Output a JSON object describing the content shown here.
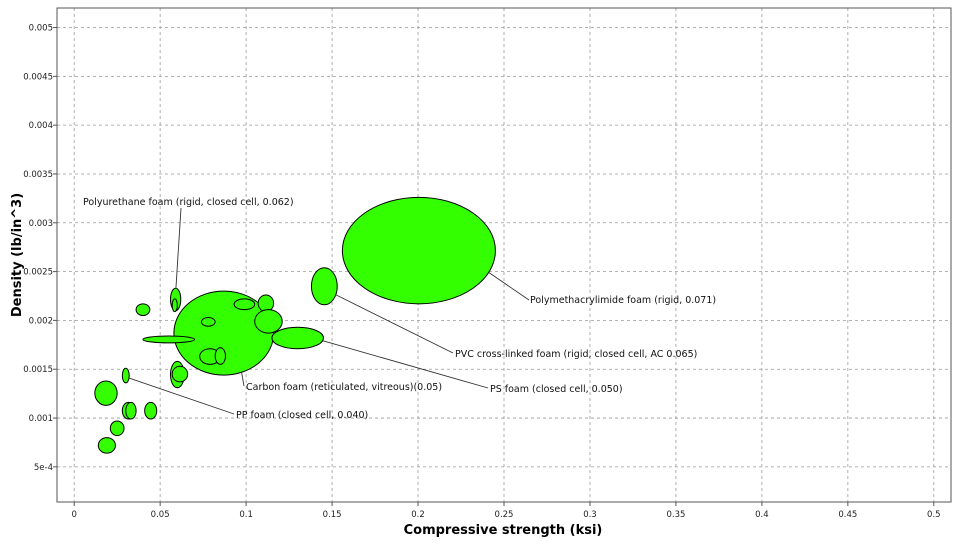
{
  "chart_data": {
    "type": "scatter",
    "title": "",
    "xlabel": "Compressive strength (ksi)",
    "ylabel": "Density (lb/in^3)",
    "xlim": [
      -0.01,
      0.51
    ],
    "ylim": [
      0.00014,
      0.0052
    ],
    "x_ticks": [
      0,
      0.05,
      0.1,
      0.15,
      0.2,
      0.25,
      0.3,
      0.35,
      0.4,
      0.45,
      0.5
    ],
    "x_tick_labels": [
      "0",
      "0.05",
      "0.1",
      "0.15",
      "0.2",
      "0.25",
      "0.3",
      "0.35",
      "0.4",
      "0.45",
      "0.5"
    ],
    "y_ticks": [
      0.0005,
      0.001,
      0.0015,
      0.002,
      0.0025,
      0.003,
      0.0035,
      0.004,
      0.0045,
      0.005
    ],
    "y_tick_labels": [
      "5e-4",
      "0.001",
      "0.0015",
      "0.002",
      "0.0025",
      "0.003",
      "0.0035",
      "0.004",
      "0.0045",
      "0.005"
    ],
    "grid": true,
    "fill_color": "#33ff00",
    "stroke_color": "#000000",
    "bubbles": [
      {
        "x_min": 0.156,
        "x_max": 0.245,
        "y_min": 0.00217,
        "y_max": 0.00326,
        "label": "Polymethacrylimide foam (rigid, 0.071)"
      },
      {
        "x_min": 0.138,
        "x_max": 0.153,
        "y_min": 0.00216,
        "y_max": 0.00254,
        "label": "PVC cross-linked foam (rigid, closed cell, AC 0.065)"
      },
      {
        "x_min": 0.058,
        "x_max": 0.116,
        "y_min": 0.00144,
        "y_max": 0.0023,
        "label": "Carbon foam (reticulated, vitreous)(0.05)"
      },
      {
        "x_min": 0.115,
        "x_max": 0.145,
        "y_min": 0.00171,
        "y_max": 0.00193,
        "label": "PS foam (closed cell, 0.050)"
      },
      {
        "x_min": 0.056,
        "x_max": 0.062,
        "y_min": 0.0021,
        "y_max": 0.00233,
        "label": "Polyurethane foam (rigid, closed cell, 0.062)"
      },
      {
        "x_min": 0.057,
        "x_max": 0.06,
        "y_min": 0.00209,
        "y_max": 0.00222,
        "label": ""
      },
      {
        "x_min": 0.028,
        "x_max": 0.032,
        "y_min": 0.00136,
        "y_max": 0.00151,
        "label": "PP foam (closed cell, 0.040)"
      },
      {
        "x_min": 0.04,
        "x_max": 0.07,
        "y_min": 0.00177,
        "y_max": 0.00184,
        "label": ""
      },
      {
        "x_min": 0.036,
        "x_max": 0.044,
        "y_min": 0.00205,
        "y_max": 0.00217,
        "label": ""
      },
      {
        "x_min": 0.074,
        "x_max": 0.082,
        "y_min": 0.00194,
        "y_max": 0.00203,
        "label": ""
      },
      {
        "x_min": 0.093,
        "x_max": 0.105,
        "y_min": 0.00211,
        "y_max": 0.00222,
        "label": ""
      },
      {
        "x_min": 0.107,
        "x_max": 0.116,
        "y_min": 0.00209,
        "y_max": 0.00226,
        "label": ""
      },
      {
        "x_min": 0.105,
        "x_max": 0.121,
        "y_min": 0.00187,
        "y_max": 0.00211,
        "label": ""
      },
      {
        "x_min": 0.073,
        "x_max": 0.085,
        "y_min": 0.00155,
        "y_max": 0.00171,
        "label": ""
      },
      {
        "x_min": 0.082,
        "x_max": 0.088,
        "y_min": 0.00155,
        "y_max": 0.00172,
        "label": ""
      },
      {
        "x_min": 0.056,
        "x_max": 0.064,
        "y_min": 0.00131,
        "y_max": 0.00158,
        "label": ""
      },
      {
        "x_min": 0.057,
        "x_max": 0.066,
        "y_min": 0.00137,
        "y_max": 0.00153,
        "label": ""
      },
      {
        "x_min": 0.012,
        "x_max": 0.025,
        "y_min": 0.00113,
        "y_max": 0.00138,
        "label": ""
      },
      {
        "x_min": 0.028,
        "x_max": 0.035,
        "y_min": 0.00099,
        "y_max": 0.00116,
        "label": ""
      },
      {
        "x_min": 0.03,
        "x_max": 0.036,
        "y_min": 0.00099,
        "y_max": 0.00116,
        "label": ""
      },
      {
        "x_min": 0.041,
        "x_max": 0.048,
        "y_min": 0.00099,
        "y_max": 0.00116,
        "label": ""
      },
      {
        "x_min": 0.021,
        "x_max": 0.029,
        "y_min": 0.00082,
        "y_max": 0.00097,
        "label": ""
      },
      {
        "x_min": 0.014,
        "x_max": 0.024,
        "y_min": 0.00064,
        "y_max": 0.0008,
        "label": ""
      }
    ]
  }
}
